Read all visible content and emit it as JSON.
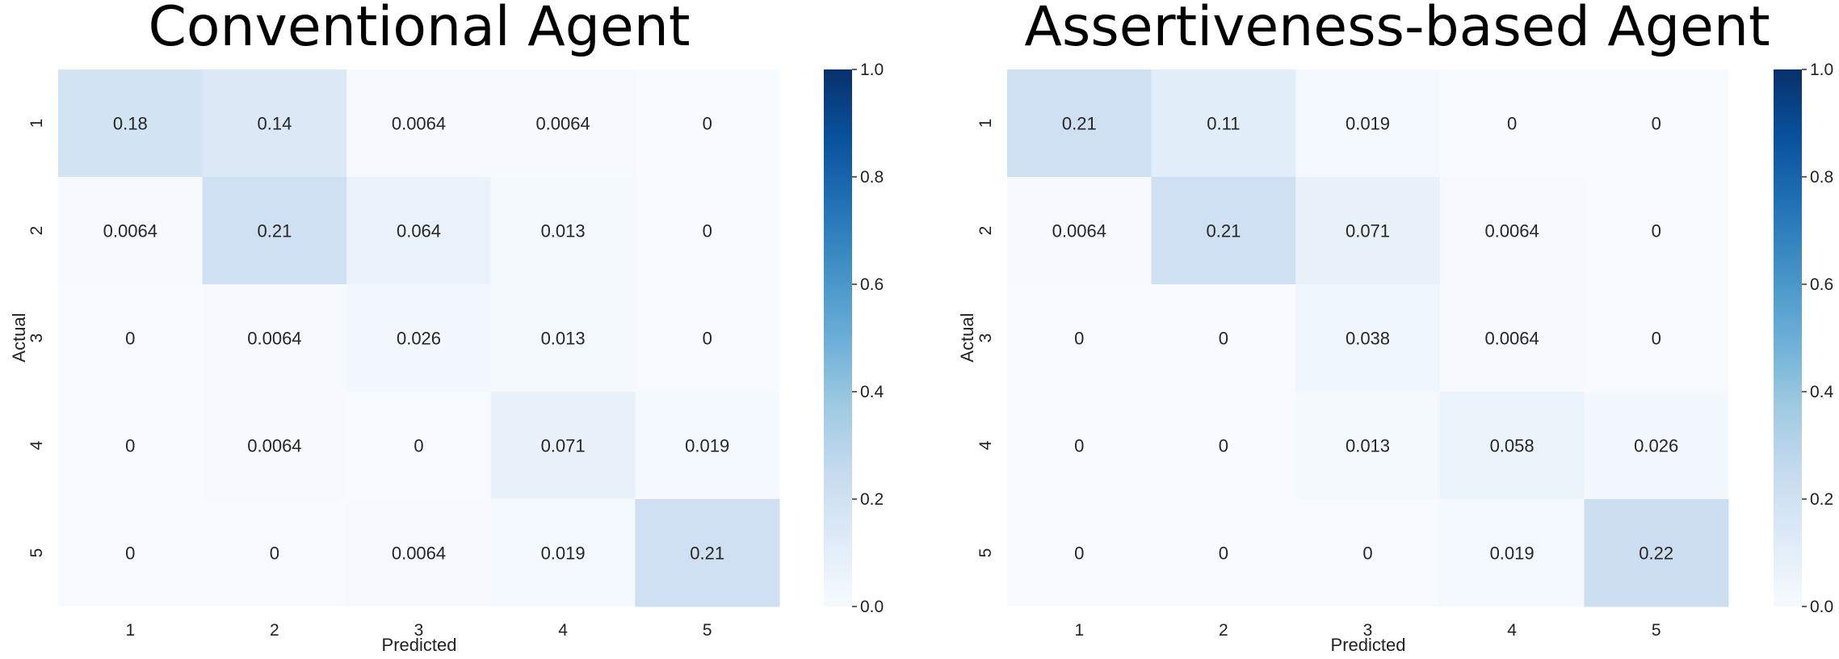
{
  "chart_data": [
    {
      "type": "heatmap",
      "title": "Conventional Agent",
      "xlabel": "Predicted",
      "ylabel": "Actual",
      "x_categories": [
        "1",
        "2",
        "3",
        "4",
        "5"
      ],
      "y_categories": [
        "1",
        "2",
        "3",
        "4",
        "5"
      ],
      "labels": [
        [
          "0.18",
          "0.14",
          "0.0064",
          "0.0064",
          "0"
        ],
        [
          "0.0064",
          "0.21",
          "0.064",
          "0.013",
          "0"
        ],
        [
          "0",
          "0.0064",
          "0.026",
          "0.013",
          "0"
        ],
        [
          "0",
          "0.0064",
          "0",
          "0.071",
          "0.019"
        ],
        [
          "0",
          "0",
          "0.0064",
          "0.019",
          "0.21"
        ]
      ],
      "values": [
        [
          0.18,
          0.14,
          0.0064,
          0.0064,
          0
        ],
        [
          0.0064,
          0.21,
          0.064,
          0.013,
          0
        ],
        [
          0,
          0.0064,
          0.026,
          0.013,
          0
        ],
        [
          0,
          0.0064,
          0,
          0.071,
          0.019
        ],
        [
          0,
          0,
          0.0064,
          0.019,
          0.21
        ]
      ],
      "colorbar": {
        "range": [
          0.0,
          1.0
        ],
        "ticks": [
          "0.0",
          "0.2",
          "0.4",
          "0.6",
          "0.8",
          "1.0"
        ],
        "colormap": "Blues"
      }
    },
    {
      "type": "heatmap",
      "title": "Assertiveness-based Agent",
      "xlabel": "Predicted",
      "ylabel": "Actual",
      "x_categories": [
        "1",
        "2",
        "3",
        "4",
        "5"
      ],
      "y_categories": [
        "1",
        "2",
        "3",
        "4",
        "5"
      ],
      "labels": [
        [
          "0.21",
          "0.11",
          "0.019",
          "0",
          "0"
        ],
        [
          "0.0064",
          "0.21",
          "0.071",
          "0.0064",
          "0"
        ],
        [
          "0",
          "0",
          "0.038",
          "0.0064",
          "0"
        ],
        [
          "0",
          "0",
          "0.013",
          "0.058",
          "0.026"
        ],
        [
          "0",
          "0",
          "0",
          "0.019",
          "0.22"
        ]
      ],
      "values": [
        [
          0.21,
          0.11,
          0.019,
          0,
          0
        ],
        [
          0.0064,
          0.21,
          0.071,
          0.0064,
          0
        ],
        [
          0,
          0,
          0.038,
          0.0064,
          0
        ],
        [
          0,
          0,
          0.013,
          0.058,
          0.026
        ],
        [
          0,
          0,
          0,
          0.019,
          0.22
        ]
      ],
      "colorbar": {
        "range": [
          0.0,
          1.0
        ],
        "ticks": [
          "0.0",
          "0.2",
          "0.4",
          "0.6",
          "0.8",
          "1.0"
        ],
        "colormap": "Blues"
      }
    }
  ]
}
